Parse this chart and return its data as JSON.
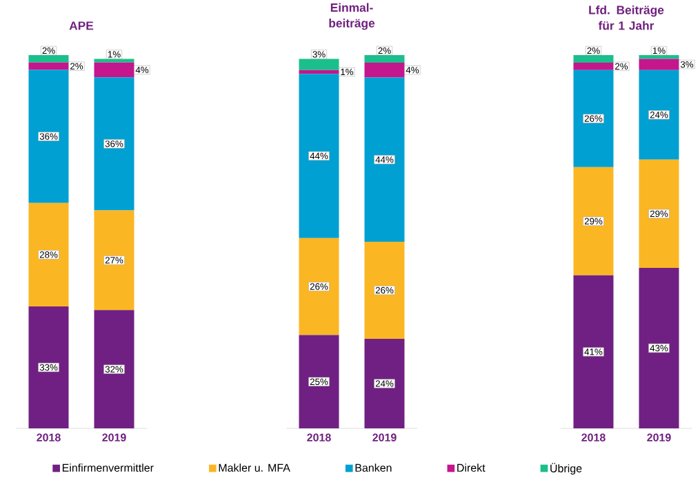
{
  "chart_data": [
    {
      "type": "bar",
      "title": "APE",
      "categories": [
        "2018",
        "2019"
      ],
      "stacked": true,
      "legend": "bottom",
      "series": [
        {
          "name": "Einfirmenvermittler",
          "color": "#702082",
          "values": [
            33,
            32
          ],
          "value_labels": [
            "33%",
            "32%"
          ]
        },
        {
          "name": "Makler u. MFA",
          "color": "#fbb623",
          "values": [
            28,
            27
          ],
          "value_labels": [
            "28%",
            "27%"
          ]
        },
        {
          "name": "Banken",
          "color": "#00a0d2",
          "values": [
            36,
            36
          ],
          "value_labels": [
            "36%",
            "36%"
          ]
        },
        {
          "name": "Direkt",
          "color": "#c4168d",
          "values": [
            2,
            4
          ],
          "value_labels": [
            "2%",
            "4%"
          ]
        },
        {
          "name": "Übrige",
          "color": "#1bbf8c",
          "values": [
            2,
            1
          ],
          "value_labels": [
            "2%",
            "1%"
          ]
        }
      ]
    },
    {
      "type": "bar",
      "title": "Einmal-beiträge",
      "categories": [
        "2018",
        "2019"
      ],
      "stacked": true,
      "series": [
        {
          "color": "#702082",
          "values": [
            25,
            24
          ],
          "value_labels": [
            "25%",
            "24%"
          ]
        },
        {
          "color": "#fbb623",
          "values": [
            26,
            26
          ],
          "value_labels": [
            "26%",
            "26%"
          ]
        },
        {
          "color": "#00a0d2",
          "values": [
            44,
            44
          ],
          "value_labels": [
            "44%",
            "44%"
          ]
        },
        {
          "color": "#c4168d",
          "values": [
            1,
            4
          ],
          "value_labels": [
            "1%",
            "4%"
          ]
        },
        {
          "color": "#1bbf8c",
          "values": [
            3,
            2
          ],
          "value_labels": [
            "3%",
            "2%"
          ]
        }
      ]
    },
    {
      "type": "bar",
      "title": "Lfd. Beiträge für 1 Jahr",
      "categories": [
        "2018",
        "2019"
      ],
      "stacked": true,
      "series": [
        {
          "color": "#702082",
          "values": [
            41,
            43
          ],
          "value_labels": [
            "41%",
            "43%"
          ]
        },
        {
          "color": "#fbb623",
          "values": [
            29,
            29
          ],
          "value_labels": [
            "29%",
            "29%"
          ]
        },
        {
          "color": "#00a0d2",
          "values": [
            26,
            24
          ],
          "value_labels": [
            "26%",
            "24%"
          ]
        },
        {
          "color": "#c4168d",
          "values": [
            2,
            3
          ],
          "value_labels": [
            "2%",
            "3%"
          ]
        },
        {
          "color": "#1bbf8c",
          "values": [
            2,
            1
          ],
          "value_labels": [
            "2%",
            "1%"
          ]
        }
      ]
    }
  ]
}
